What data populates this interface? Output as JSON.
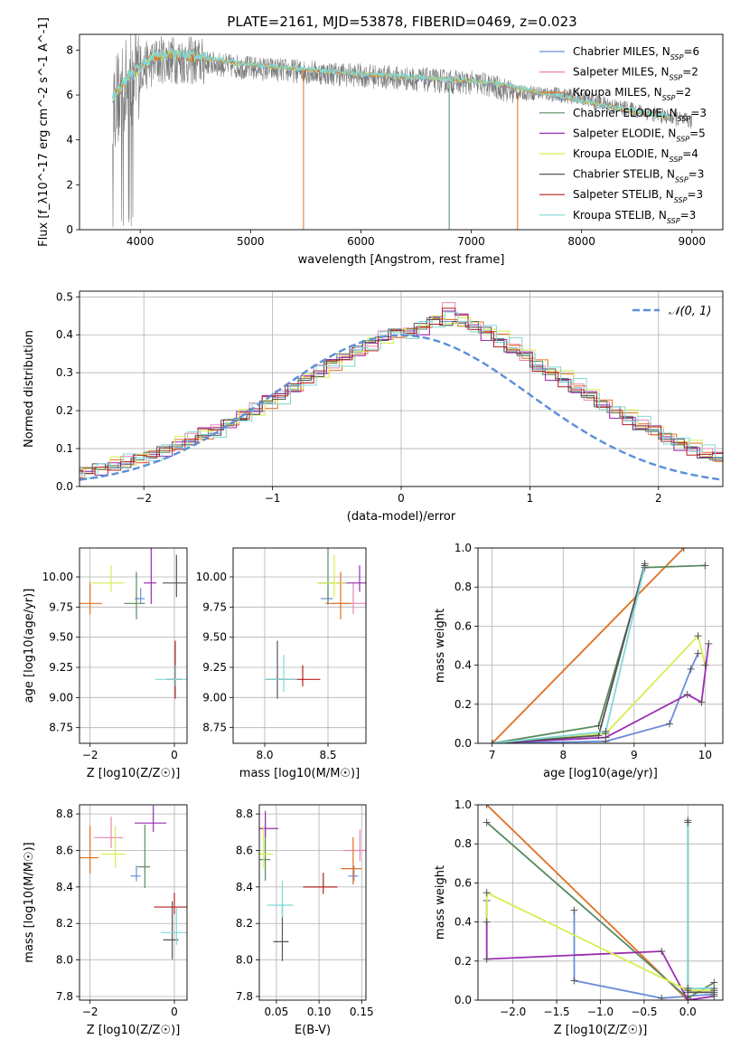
{
  "figure": {
    "title": "PLATE=2161, MJD=53878, FIBERID=0469, z=0.023"
  },
  "palette": [
    "#6a8fd8",
    "#e884b6",
    "#e07020",
    "#5a8a60",
    "#9a2cb0",
    "#d6ee50",
    "#555555",
    "#b22020",
    "#80d8d8"
  ],
  "chart_data": [
    {
      "id": "spectrum",
      "type": "line",
      "xlabel": "wavelength [Angstrom, rest frame]",
      "ylabel": "Flux [f_λ10^-17 erg cm^-2 s^-1 A^-1]",
      "xlim": [
        3450,
        9280
      ],
      "ylim": [
        0,
        8.7
      ],
      "xticks": [
        4000,
        5000,
        6000,
        7000,
        8000,
        9000
      ],
      "yticks": [
        0,
        2,
        4,
        6,
        8
      ],
      "grid": false,
      "legend": "top-right",
      "data_x": [
        3750,
        3850,
        4000,
        4200,
        4500,
        4800,
        5000,
        5300,
        5600,
        5900,
        6200,
        6500,
        6800,
        7100,
        7400,
        7600,
        7800,
        8000,
        8200,
        8400,
        8600,
        8800,
        9000
      ],
      "data_y": [
        5.6,
        6.2,
        7.2,
        7.6,
        7.5,
        7.3,
        7.2,
        7.1,
        7.0,
        6.9,
        6.8,
        6.7,
        6.6,
        6.5,
        6.1,
        6.1,
        6.0,
        5.9,
        5.6,
        5.4,
        5.2,
        5.0,
        4.8
      ],
      "model_x": [
        3750,
        3900,
        4100,
        4300,
        4600,
        5000,
        5500,
        6000,
        6500,
        7000,
        7300,
        7700,
        8000,
        8400,
        8800
      ],
      "model_y": [
        5.9,
        6.8,
        7.6,
        7.8,
        7.6,
        7.3,
        7.1,
        6.9,
        6.75,
        6.6,
        6.4,
        6.0,
        5.7,
        5.3,
        5.0
      ],
      "series": [
        {
          "name": "Chabrier MILES, N_SSP=6",
          "label": "Chabrier MILES, N",
          "nssp": "=6"
        },
        {
          "name": "Salpeter MILES, N_SSP=2",
          "label": "Salpeter MILES, N",
          "nssp": "=2"
        },
        {
          "name": "Kroupa MILES, N_SSP=2",
          "label": "Kroupa MILES, N",
          "nssp": "=2"
        },
        {
          "name": "Chabrier ELODIE, N_SSP=3",
          "label": "Chabrier ELODIE, N",
          "nssp": "=3"
        },
        {
          "name": "Salpeter ELODIE, N_SSP=5",
          "label": "Salpeter ELODIE, N",
          "nssp": "=5"
        },
        {
          "name": "Kroupa ELODIE, N_SSP=4",
          "label": "Kroupa ELODIE, N",
          "nssp": "=4"
        },
        {
          "name": "Chabrier STELIB, N_SSP=3",
          "label": "Chabrier STELIB, N",
          "nssp": "=3"
        },
        {
          "name": "Salpeter STELIB, N_SSP=3",
          "label": "Salpeter STELIB, N",
          "nssp": "=3"
        },
        {
          "name": "Kroupa STELIB, N_SSP=3",
          "label": "Kroupa STELIB, N",
          "nssp": "=3"
        }
      ],
      "ssp_sub": "SSP"
    },
    {
      "id": "residuals",
      "type": "bar",
      "xlabel": "(data-model)/error",
      "ylabel": "Normed distribution",
      "xlim": [
        -2.5,
        2.5
      ],
      "ylim": [
        0,
        0.515
      ],
      "xticks": [
        -2,
        -1,
        0,
        1,
        2
      ],
      "yticks": [
        0.0,
        0.1,
        0.2,
        0.3,
        0.4,
        0.5
      ],
      "grid": true,
      "legend": "top-right",
      "bin_width": 0.1,
      "gaussian": {
        "label": "𝒩(0, 1)",
        "mean": 0,
        "sigma": 1
      },
      "histograms": [
        [
          0.015,
          0.02,
          0.025,
          0.03,
          0.04,
          0.04,
          0.05,
          0.05,
          0.06,
          0.07,
          0.08,
          0.095,
          0.105,
          0.12,
          0.13,
          0.14,
          0.165,
          0.175,
          0.2,
          0.22,
          0.235,
          0.255,
          0.28,
          0.3,
          0.325,
          0.34,
          0.36,
          0.38,
          0.395,
          0.41,
          0.405,
          0.42,
          0.44,
          0.435,
          0.43,
          0.425,
          0.41,
          0.385,
          0.365,
          0.345,
          0.32,
          0.3,
          0.28,
          0.26,
          0.235,
          0.215,
          0.2,
          0.18,
          0.16,
          0.145,
          0.13,
          0.115,
          0.1,
          0.085,
          0.07,
          0.06,
          0.05,
          0.045,
          0.04,
          0.035,
          0.025,
          0.025,
          0.02,
          0.02,
          0.015,
          0.015,
          0.01,
          0.01,
          0.01,
          0.01
        ],
        [
          0.01,
          0.015,
          0.02,
          0.025,
          0.03,
          0.04,
          0.045,
          0.055,
          0.065,
          0.07,
          0.085,
          0.095,
          0.11,
          0.125,
          0.14,
          0.155,
          0.17,
          0.19,
          0.205,
          0.225,
          0.245,
          0.265,
          0.285,
          0.305,
          0.32,
          0.34,
          0.36,
          0.37,
          0.395,
          0.4,
          0.41,
          0.415,
          0.44,
          0.47,
          0.44,
          0.42,
          0.4,
          0.38,
          0.36,
          0.34,
          0.31,
          0.295,
          0.275,
          0.255,
          0.235,
          0.215,
          0.195,
          0.175,
          0.16,
          0.145,
          0.125,
          0.11,
          0.095,
          0.085,
          0.075,
          0.06,
          0.05,
          0.045,
          0.04,
          0.035,
          0.03,
          0.025,
          0.02,
          0.02,
          0.015,
          0.015,
          0.01,
          0.01,
          0.01,
          0.01
        ],
        [
          0.012,
          0.018,
          0.022,
          0.028,
          0.035,
          0.042,
          0.05,
          0.058,
          0.066,
          0.075,
          0.088,
          0.1,
          0.112,
          0.124,
          0.137,
          0.15,
          0.168,
          0.183,
          0.198,
          0.218,
          0.238,
          0.258,
          0.277,
          0.298,
          0.318,
          0.337,
          0.356,
          0.372,
          0.388,
          0.405,
          0.41,
          0.425,
          0.43,
          0.44,
          0.435,
          0.428,
          0.415,
          0.39,
          0.372,
          0.35,
          0.328,
          0.305,
          0.285,
          0.265,
          0.245,
          0.222,
          0.2,
          0.182,
          0.165,
          0.148,
          0.132,
          0.118,
          0.102,
          0.09,
          0.078,
          0.065,
          0.055,
          0.048,
          0.042,
          0.036,
          0.03,
          0.026,
          0.022,
          0.018,
          0.016,
          0.014,
          0.012,
          0.01,
          0.01,
          0.01
        ]
      ]
    },
    {
      "id": "age-Z",
      "type": "scatter",
      "xlabel": "Z [log10(Z/Z☉)]",
      "ylabel": "age [log10(age/yr)]",
      "xlim": [
        -2.25,
        0.3
      ],
      "ylim": [
        8.62,
        10.24
      ],
      "xticks": [
        -2,
        0
      ],
      "yticks": [
        8.75,
        9.0,
        9.25,
        9.5,
        9.75,
        10.0
      ],
      "grid": true,
      "points": [
        {
          "x": -0.8,
          "y": 9.82,
          "c": 0
        },
        {
          "x": -2.0,
          "y": 9.78,
          "c": 2
        },
        {
          "x": -0.9,
          "y": 9.78,
          "c": 3
        },
        {
          "x": -0.55,
          "y": 9.95,
          "c": 4
        },
        {
          "x": -1.5,
          "y": 9.95,
          "c": 5
        },
        {
          "x": 0.05,
          "y": 9.95,
          "c": 6
        },
        {
          "x": 0.02,
          "y": 9.15,
          "c": 7
        },
        {
          "x": 0.03,
          "y": 9.15,
          "c": 8
        }
      ]
    },
    {
      "id": "age-mass",
      "type": "scatter",
      "xlabel": "mass [log10(M/M☉)]",
      "ylabel": "",
      "xlim": [
        7.75,
        8.8
      ],
      "ylim": [
        8.62,
        10.24
      ],
      "xticks": [
        8.0,
        8.5
      ],
      "yticks": [
        8.75,
        9.0,
        9.25,
        9.5,
        9.75,
        10.0
      ],
      "grid": true,
      "points": [
        {
          "x": 8.5,
          "y": 9.82,
          "c": 0
        },
        {
          "x": 8.7,
          "y": 9.78,
          "c": 1
        },
        {
          "x": 8.6,
          "y": 9.78,
          "c": 2
        },
        {
          "x": 8.5,
          "y": 9.95,
          "c": 3
        },
        {
          "x": 8.75,
          "y": 9.95,
          "c": 4
        },
        {
          "x": 8.55,
          "y": 9.95,
          "c": 5
        },
        {
          "x": 8.1,
          "y": 9.15,
          "c": 6
        },
        {
          "x": 8.3,
          "y": 9.15,
          "c": 7
        },
        {
          "x": 8.15,
          "y": 9.15,
          "c": 8
        }
      ]
    },
    {
      "id": "weight-age",
      "type": "line",
      "xlabel": "age [log10(age/yr)]",
      "ylabel": "mass weight",
      "xlim": [
        6.8,
        10.25
      ],
      "ylim": [
        0,
        1
      ],
      "xticks": [
        7,
        8,
        9,
        10
      ],
      "yticks": [
        0.0,
        0.2,
        0.4,
        0.6,
        0.8,
        1.0
      ],
      "grid": true,
      "series": [
        {
          "c": 0,
          "x": [
            7.0,
            8.6,
            9.5,
            9.8,
            9.9
          ],
          "y": [
            0.0,
            0.01,
            0.1,
            0.38,
            0.46
          ]
        },
        {
          "c": 2,
          "x": [
            7.0,
            9.7
          ],
          "y": [
            0.0,
            1.0
          ]
        },
        {
          "c": 3,
          "x": [
            7.0,
            8.5,
            9.15,
            10.0
          ],
          "y": [
            0.0,
            0.09,
            0.9,
            0.91
          ]
        },
        {
          "c": 4,
          "x": [
            7.0,
            8.6,
            9.75,
            9.95,
            10.05
          ],
          "y": [
            0.0,
            0.03,
            0.25,
            0.21,
            0.51
          ]
        },
        {
          "c": 5,
          "x": [
            7.0,
            8.6,
            9.9,
            10.0
          ],
          "y": [
            0.0,
            0.05,
            0.55,
            0.4
          ]
        },
        {
          "c": 6,
          "x": [
            7.0,
            8.5,
            9.15
          ],
          "y": [
            0.0,
            0.04,
            0.92
          ]
        },
        {
          "c": 8,
          "x": [
            7.0,
            8.6,
            9.15
          ],
          "y": [
            0.0,
            0.06,
            0.91
          ]
        }
      ]
    },
    {
      "id": "mass-Z",
      "type": "scatter",
      "xlabel": "Z [log10(Z/Z☉)]",
      "ylabel": "mass [log10(M/M☉)]",
      "xlim": [
        -2.25,
        0.3
      ],
      "ylim": [
        7.78,
        8.85
      ],
      "xticks": [
        -2,
        0
      ],
      "yticks": [
        7.8,
        8.0,
        8.2,
        8.4,
        8.6,
        8.8
      ],
      "grid": true,
      "points": [
        {
          "x": -0.9,
          "y": 8.46,
          "c": 0
        },
        {
          "x": -1.5,
          "y": 8.67,
          "c": 1
        },
        {
          "x": -2.0,
          "y": 8.56,
          "c": 2
        },
        {
          "x": -0.7,
          "y": 8.51,
          "c": 3
        },
        {
          "x": -0.5,
          "y": 8.75,
          "c": 4
        },
        {
          "x": -1.4,
          "y": 8.58,
          "c": 5
        },
        {
          "x": -0.05,
          "y": 8.11,
          "c": 6
        },
        {
          "x": 0.0,
          "y": 8.29,
          "c": 7
        },
        {
          "x": 0.05,
          "y": 8.15,
          "c": 8
        }
      ]
    },
    {
      "id": "mass-ebv",
      "type": "scatter",
      "xlabel": "E(B-V)",
      "ylabel": "",
      "xlim": [
        0.03,
        0.155
      ],
      "ylim": [
        7.78,
        8.85
      ],
      "xticks": [
        0.05,
        0.1,
        0.15
      ],
      "yticks": [
        7.8,
        8.0,
        8.2,
        8.4,
        8.6,
        8.8
      ],
      "grid": true,
      "points": [
        {
          "x": 0.141,
          "y": 8.46,
          "c": 0
        },
        {
          "x": 0.148,
          "y": 8.6,
          "c": 1
        },
        {
          "x": 0.14,
          "y": 8.5,
          "c": 2
        },
        {
          "x": 0.037,
          "y": 8.55,
          "c": 3
        },
        {
          "x": 0.037,
          "y": 8.72,
          "c": 4
        },
        {
          "x": 0.035,
          "y": 8.58,
          "c": 5
        },
        {
          "x": 0.057,
          "y": 8.1,
          "c": 6
        },
        {
          "x": 0.105,
          "y": 8.4,
          "c": 7
        },
        {
          "x": 0.057,
          "y": 8.3,
          "c": 8
        }
      ]
    },
    {
      "id": "weight-Z",
      "type": "line",
      "xlabel": "Z [log10(Z/Z☉)]",
      "ylabel": "mass weight",
      "xlim": [
        -2.4,
        0.4
      ],
      "ylim": [
        0,
        1
      ],
      "xticks": [
        -2.0,
        -1.5,
        -1.0,
        -0.5,
        0.0
      ],
      "yticks": [
        0.0,
        0.2,
        0.4,
        0.6,
        0.8,
        1.0
      ],
      "grid": true,
      "series": [
        {
          "c": 0,
          "x": [
            -1.3,
            -1.3,
            -0.3,
            0.0,
            0.3
          ],
          "y": [
            0.46,
            0.1,
            0.01,
            0.02,
            0.03
          ]
        },
        {
          "c": 2,
          "x": [
            -2.3,
            0.0
          ],
          "y": [
            1.0,
            0.0
          ]
        },
        {
          "c": 3,
          "x": [
            -2.3,
            0.0,
            0.3
          ],
          "y": [
            0.91,
            0.01,
            0.09
          ]
        },
        {
          "c": 4,
          "x": [
            -2.3,
            -2.3,
            -0.3,
            0.0,
            0.3
          ],
          "y": [
            0.51,
            0.21,
            0.25,
            0.0,
            0.02
          ]
        },
        {
          "c": 5,
          "x": [
            -2.3,
            -2.3,
            0.0,
            0.3
          ],
          "y": [
            0.4,
            0.55,
            0.05,
            0.05
          ]
        },
        {
          "c": 6,
          "x": [
            0.0,
            0.0,
            0.3
          ],
          "y": [
            0.92,
            0.04,
            0.04
          ]
        },
        {
          "c": 8,
          "x": [
            0.0,
            0.0,
            0.3
          ],
          "y": [
            0.91,
            0.06,
            0.06
          ]
        }
      ]
    }
  ]
}
